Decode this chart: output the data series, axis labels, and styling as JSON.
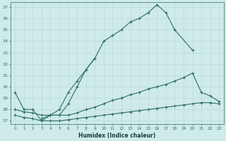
{
  "xlabel": "Humidex (Indice chaleur)",
  "bg_color": "#ceeaea",
  "line_color": "#2d6e63",
  "xlim_min": -0.5,
  "xlim_max": 23.5,
  "ylim_min": 26.7,
  "ylim_max": 37.4,
  "yticks": [
    27,
    28,
    29,
    30,
    31,
    32,
    33,
    34,
    35,
    36,
    37
  ],
  "xticks": [
    0,
    1,
    2,
    3,
    4,
    5,
    6,
    7,
    8,
    9,
    10,
    11,
    12,
    13,
    14,
    15,
    16,
    17,
    18,
    19,
    20,
    21,
    22,
    23
  ],
  "series1_x": [
    0,
    1,
    2,
    3,
    4,
    5,
    6,
    7,
    8,
    9,
    10,
    11,
    12,
    13,
    14,
    15,
    16,
    17,
    18,
    20
  ],
  "series1_y": [
    29.5,
    28.0,
    28.0,
    27.0,
    27.5,
    27.5,
    28.5,
    30.0,
    31.5,
    32.5,
    34.0,
    34.5,
    35.0,
    35.7,
    36.0,
    36.5,
    37.2,
    36.5,
    35.0,
    33.2
  ],
  "series2_x": [
    3,
    4,
    5,
    6,
    7,
    8,
    9
  ],
  "series2_y": [
    27.2,
    27.5,
    28.0,
    29.5,
    30.5,
    31.5,
    32.5
  ],
  "series3_x": [
    0,
    1,
    2,
    3,
    4,
    5,
    6,
    7,
    8,
    9,
    10,
    11,
    12,
    13,
    14,
    15,
    16,
    17,
    18,
    19,
    20,
    21,
    22,
    23
  ],
  "series3_y": [
    28.0,
    27.8,
    27.7,
    27.5,
    27.5,
    27.5,
    27.5,
    27.7,
    28.0,
    28.2,
    28.5,
    28.8,
    29.0,
    29.3,
    29.5,
    29.8,
    30.0,
    30.2,
    30.5,
    30.8,
    31.2,
    29.5,
    29.2,
    28.7
  ],
  "series4_x": [
    0,
    1,
    2,
    3,
    4,
    5,
    6,
    7,
    8,
    9,
    10,
    11,
    12,
    13,
    14,
    15,
    16,
    17,
    18,
    19,
    20,
    21,
    22,
    23
  ],
  "series4_y": [
    27.5,
    27.3,
    27.2,
    27.0,
    27.0,
    27.0,
    27.1,
    27.2,
    27.3,
    27.4,
    27.5,
    27.6,
    27.7,
    27.8,
    27.9,
    28.0,
    28.1,
    28.2,
    28.3,
    28.4,
    28.5,
    28.6,
    28.6,
    28.5
  ]
}
